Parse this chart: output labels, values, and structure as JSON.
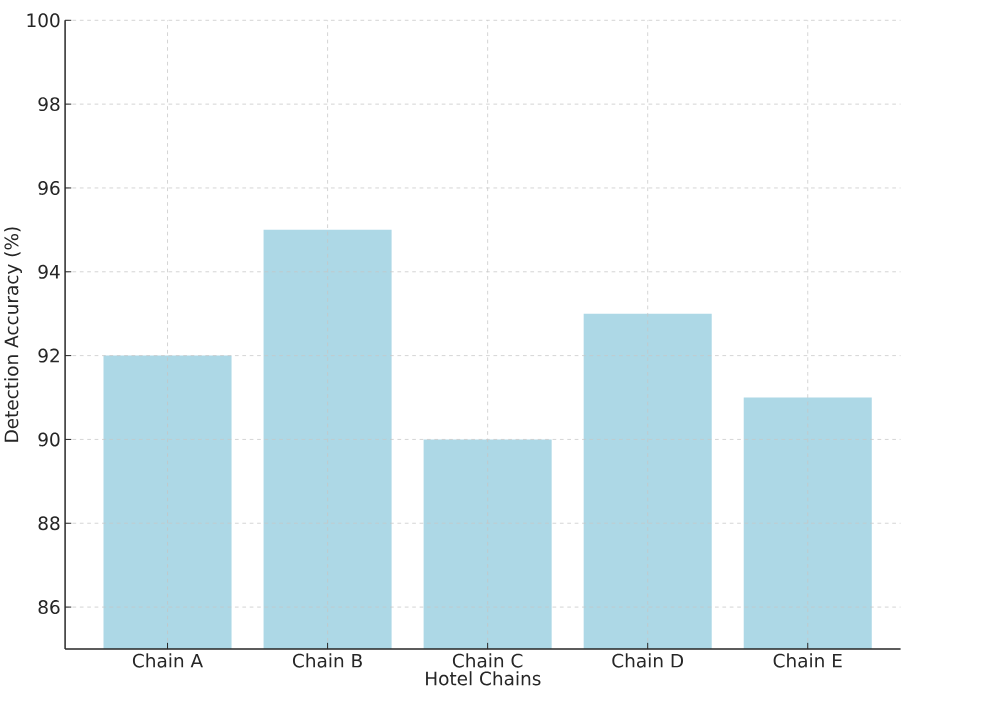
{
  "chart_data": {
    "type": "bar",
    "xlabel": "Hotel Chains",
    "ylabel": "Detection Accuracy (%)",
    "categories": [
      "Chain A",
      "Chain B",
      "Chain C",
      "Chain D",
      "Chain E"
    ],
    "values": [
      92,
      95,
      90,
      93,
      91
    ],
    "color": "#add8e6",
    "ylim": [
      85,
      100
    ],
    "yticks": [
      86,
      88,
      90,
      92,
      94,
      96,
      98,
      100
    ],
    "grid": true
  }
}
